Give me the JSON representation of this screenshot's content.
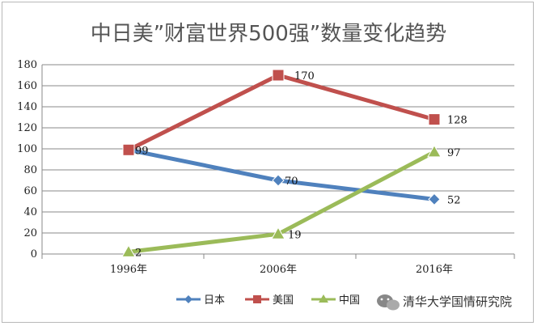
{
  "chart_data": {
    "type": "line",
    "title": "中日美”财富世界500强”数量变化趋势",
    "categories": [
      "1996年",
      "2006年",
      "2016年"
    ],
    "series": [
      {
        "name": "日本",
        "values": [
          99,
          70,
          52
        ],
        "color": "#4F81BD",
        "marker": "diamond",
        "labels": [
          "99",
          "70",
          "52"
        ]
      },
      {
        "name": "美国",
        "values": [
          99,
          170,
          128
        ],
        "color": "#C0504D",
        "marker": "square",
        "labels": [
          "",
          "170",
          "128"
        ]
      },
      {
        "name": "中国",
        "values": [
          2,
          19,
          97
        ],
        "color": "#9BBB59",
        "marker": "triangle",
        "labels": [
          "2",
          "19",
          "97"
        ]
      }
    ],
    "ylim": [
      0,
      180
    ],
    "yticks": [
      0,
      20,
      40,
      60,
      80,
      100,
      120,
      140,
      160,
      180
    ],
    "grid": true,
    "legend_position": "bottom-center",
    "xlabel": "",
    "ylabel": ""
  },
  "watermark": {
    "text": "清华大学国情研究院",
    "icon": "wechat-icon"
  }
}
